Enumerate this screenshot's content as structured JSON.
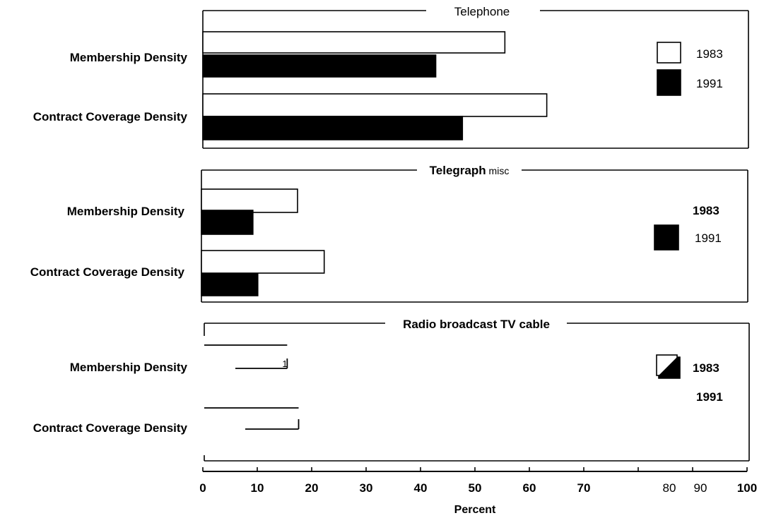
{
  "chart_data": {
    "type": "bar",
    "orientation": "horizontal",
    "xlabel": "Percent",
    "xlim": [
      0,
      100
    ],
    "x_ticks": [
      0,
      10,
      20,
      30,
      40,
      50,
      60,
      70,
      80,
      90,
      100
    ],
    "x_tick_labels": [
      "0",
      "10",
      "20",
      "30",
      "40",
      "50",
      "60",
      "70",
      "80",
      "90",
      "100"
    ],
    "grid": false,
    "legend_position": "right",
    "colors": {
      "1983": "#ffffff",
      "1991": "#000000",
      "outline": "#000000"
    },
    "panels": [
      {
        "title": "Telephone",
        "categories": [
          "Membership Density",
          "Contract Coverage Density"
        ],
        "series": [
          {
            "name": "1983",
            "values": [
              55.5,
              63.2
            ]
          },
          {
            "name": "1991",
            "values": [
              42.8,
              47.7
            ]
          }
        ],
        "legend": [
          "1983",
          "1991"
        ]
      },
      {
        "title": "Telegraph",
        "title_suffix": "MISC",
        "categories": [
          "Membership Density",
          "Contract Coverage Density"
        ],
        "series": [
          {
            "name": "1983",
            "values": [
              17.4,
              22.3
            ]
          },
          {
            "name": "1991",
            "values": [
              9.2,
              10.1
            ]
          }
        ],
        "legend": [
          "1983",
          "1991"
        ]
      },
      {
        "title": "Radio broadcast TV cable",
        "categories": [
          "Membership Density",
          "Contract Coverage Density"
        ],
        "series": [
          {
            "name": "1983",
            "values": [
              15.5,
              17.6
            ]
          },
          {
            "name": "1991",
            "values": [
              15.5,
              17.6
            ]
          }
        ],
        "legend": [
          "1983",
          "1991"
        ],
        "annotation": "1"
      }
    ]
  }
}
